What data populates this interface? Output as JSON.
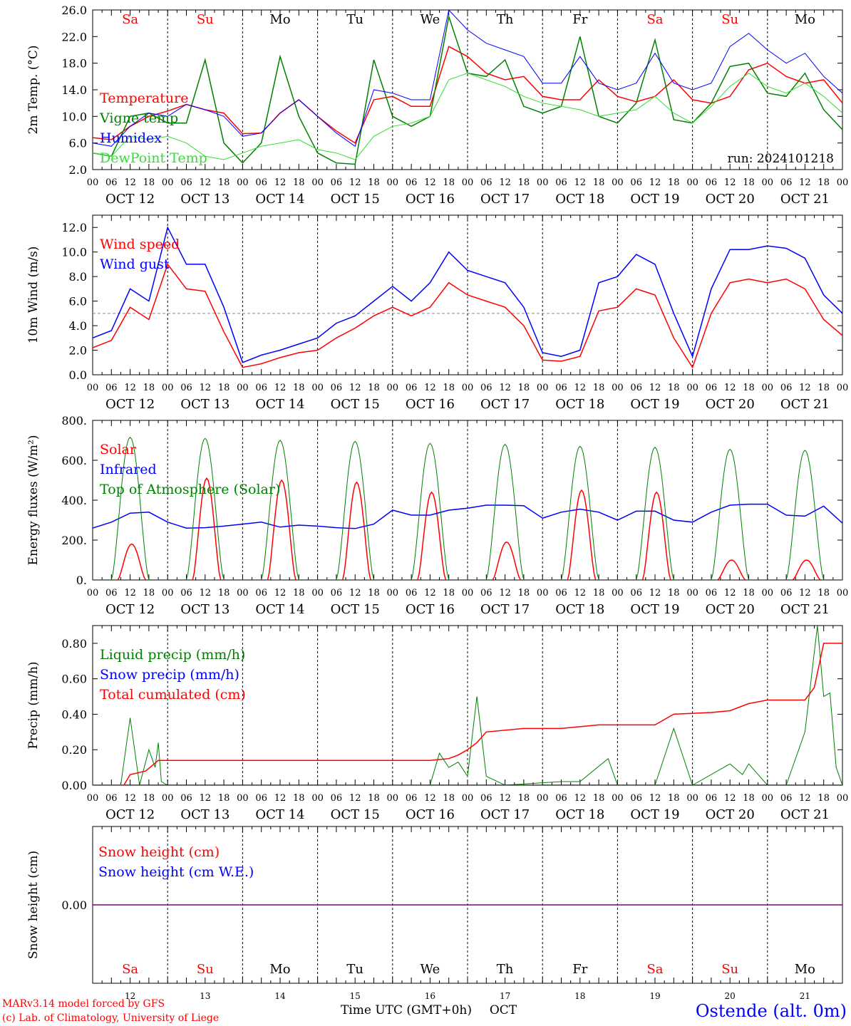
{
  "run_label": "run: 2024101218",
  "footer": {
    "model_line": "MARv3.14 model forced by GFS",
    "credit_line": "(c) Lab. of Climatology, University of Liege",
    "xlabel": "Time UTC (GMT+0h)",
    "month": "OCT",
    "station": "Ostende (alt. 0m)"
  },
  "colors": {
    "red": "#ff0000",
    "green": "#008000",
    "blue": "#0000ff",
    "light_green": "#33dd33",
    "purple": "#800080",
    "weekend": "#ff0000",
    "weekday": "#000000"
  },
  "days": [
    {
      "abbr": "Sa",
      "date": "OCT 12",
      "num": "12",
      "weekend": true
    },
    {
      "abbr": "Su",
      "date": "OCT 13",
      "num": "13",
      "weekend": true
    },
    {
      "abbr": "Mo",
      "date": "OCT 14",
      "num": "14",
      "weekend": false
    },
    {
      "abbr": "Tu",
      "date": "OCT 15",
      "num": "15",
      "weekend": false
    },
    {
      "abbr": "We",
      "date": "OCT 16",
      "num": "16",
      "weekend": false
    },
    {
      "abbr": "Th",
      "date": "OCT 17",
      "num": "17",
      "weekend": false
    },
    {
      "abbr": "Fr",
      "date": "OCT 18",
      "num": "18",
      "weekend": false
    },
    {
      "abbr": "Sa",
      "date": "OCT 19",
      "num": "19",
      "weekend": true
    },
    {
      "abbr": "Su",
      "date": "OCT 20",
      "num": "20",
      "weekend": true
    },
    {
      "abbr": "Mo",
      "date": "OCT 21",
      "num": "21",
      "weekend": false
    }
  ],
  "hour_ticks": [
    "00",
    "06",
    "12",
    "18"
  ],
  "final_hour_tick": "00",
  "chart_data": [
    {
      "type": "line",
      "ylabel": "2m Temp. (°C)",
      "ylim": [
        2,
        26
      ],
      "yticks": [
        "2.0",
        "6.0",
        "10.0",
        "14.0",
        "18.0",
        "22.0",
        "26.0"
      ],
      "ytick_values": [
        2,
        6,
        10,
        14,
        18,
        22,
        26
      ],
      "x_hours": [
        0,
        6,
        12,
        18,
        24,
        30,
        36,
        42,
        48,
        54,
        60,
        66,
        72,
        78,
        84,
        90,
        96,
        102,
        108,
        114,
        120,
        126,
        132,
        138,
        144,
        150,
        156,
        162,
        168,
        174,
        180,
        186,
        192,
        198,
        204,
        210,
        216,
        222,
        228,
        234,
        240
      ],
      "series": [
        {
          "name": "Temperature",
          "color": "#ff0000",
          "values": [
            6.8,
            6.5,
            8.5,
            10.0,
            10.8,
            11.8,
            11.0,
            10.5,
            7.4,
            7.5,
            10.5,
            12.5,
            10.0,
            7.8,
            6.0,
            12.5,
            13.0,
            11.5,
            11.5,
            20.5,
            19.0,
            16.5,
            15.5,
            16.0,
            13.0,
            12.5,
            12.5,
            15.5,
            13.0,
            12.2,
            13.0,
            15.5,
            12.5,
            12.0,
            13.0,
            17.0,
            18.0,
            16.0,
            15.0,
            15.5,
            12.0
          ]
        },
        {
          "name": "Vigne temp",
          "color": "#008000",
          "values": [
            4.5,
            4.0,
            10.0,
            10.5,
            9.0,
            9.0,
            18.5,
            6.0,
            3.0,
            6.0,
            19.0,
            10.0,
            4.5,
            3.0,
            2.8,
            18.5,
            10.0,
            8.5,
            10.0,
            25.0,
            16.5,
            16.0,
            18.5,
            11.5,
            10.5,
            11.5,
            22.0,
            10.0,
            9.0,
            12.0,
            21.5,
            9.5,
            9.0,
            12.0,
            17.5,
            18.0,
            13.5,
            13.0,
            16.5,
            11.0,
            8.0
          ]
        },
        {
          "name": "Humidex",
          "color": "#0000ff",
          "values": [
            6.0,
            5.5,
            8.5,
            10.5,
            10.0,
            11.8,
            11.0,
            10.0,
            7.0,
            7.5,
            10.5,
            12.5,
            10.0,
            7.5,
            5.5,
            14.0,
            13.5,
            12.5,
            12.5,
            26.0,
            23.0,
            21.0,
            20.0,
            19.0,
            15.0,
            15.0,
            19.0,
            15.0,
            14.0,
            15.0,
            19.5,
            15.0,
            14.0,
            15.0,
            20.5,
            22.5,
            20.0,
            18.0,
            19.5,
            16.0,
            13.5
          ]
        },
        {
          "name": "DewPoint Temp",
          "color": "#33dd33",
          "values": [
            4.5,
            4.0,
            7.0,
            6.5,
            7.0,
            6.0,
            4.0,
            3.5,
            4.5,
            5.5,
            6.0,
            6.5,
            5.0,
            4.5,
            3.5,
            7.0,
            8.5,
            9.0,
            10.0,
            15.5,
            16.5,
            15.5,
            14.5,
            13.0,
            12.0,
            11.5,
            11.0,
            10.0,
            10.5,
            11.0,
            13.0,
            10.5,
            9.0,
            11.5,
            14.5,
            16.5,
            14.5,
            13.5,
            15.0,
            13.0,
            10.5
          ]
        }
      ]
    },
    {
      "type": "line",
      "ylabel": "10m Wind (m/s)",
      "ylim": [
        0,
        13
      ],
      "yticks": [
        "0.0",
        "2.0",
        "4.0",
        "6.0",
        "8.0",
        "10.0",
        "12.0"
      ],
      "ytick_values": [
        0,
        2,
        4,
        6,
        8,
        10,
        12
      ],
      "reference_line": 5,
      "x_hours": [
        0,
        6,
        12,
        18,
        24,
        30,
        36,
        42,
        48,
        54,
        60,
        66,
        72,
        78,
        84,
        90,
        96,
        102,
        108,
        114,
        120,
        126,
        132,
        138,
        144,
        150,
        156,
        162,
        168,
        174,
        180,
        186,
        192,
        198,
        204,
        210,
        216,
        222,
        228,
        234,
        240
      ],
      "series": [
        {
          "name": "Wind speed",
          "color": "#ff0000",
          "values": [
            2.2,
            2.8,
            5.5,
            4.5,
            9.0,
            7.0,
            6.8,
            3.5,
            0.6,
            0.9,
            1.4,
            1.8,
            2.0,
            3.0,
            3.8,
            4.8,
            5.5,
            4.8,
            5.5,
            7.5,
            6.5,
            6.0,
            5.5,
            4.0,
            1.2,
            1.1,
            1.5,
            5.2,
            5.5,
            7.0,
            6.5,
            3.0,
            0.6,
            5.0,
            7.5,
            7.8,
            7.5,
            7.8,
            7.0,
            4.5,
            3.2
          ]
        },
        {
          "name": "Wind gust",
          "color": "#0000ff",
          "values": [
            3.0,
            3.6,
            7.0,
            6.0,
            12.0,
            9.0,
            9.0,
            5.5,
            1.0,
            1.6,
            2.0,
            2.5,
            3.0,
            4.2,
            4.8,
            6.0,
            7.2,
            6.0,
            7.5,
            10.0,
            8.5,
            8.0,
            7.5,
            5.5,
            1.8,
            1.5,
            2.0,
            7.5,
            8.0,
            9.8,
            9.0,
            5.0,
            1.5,
            7.0,
            10.2,
            10.2,
            10.5,
            10.3,
            9.5,
            6.5,
            5.0
          ]
        }
      ]
    },
    {
      "type": "line",
      "ylabel": "Energy fluxes (W/m²)",
      "ylim": [
        0,
        800
      ],
      "yticks": [
        "0.",
        "200.",
        "400.",
        "600.",
        "800."
      ],
      "ytick_values": [
        0,
        200,
        400,
        600,
        800
      ],
      "series": [
        {
          "name": "Solar",
          "color": "#ff0000",
          "daily_peaks": [
            180,
            510,
            500,
            490,
            440,
            190,
            450,
            440,
            100,
            100
          ]
        },
        {
          "name": "Infrared",
          "color": "#0000ff",
          "x_hours": [
            0,
            6,
            12,
            18,
            24,
            30,
            36,
            42,
            48,
            54,
            60,
            66,
            72,
            78,
            84,
            90,
            96,
            102,
            108,
            114,
            120,
            126,
            132,
            138,
            144,
            150,
            156,
            162,
            168,
            174,
            180,
            186,
            192,
            198,
            204,
            210,
            216,
            222,
            228,
            234,
            240
          ],
          "values": [
            260,
            290,
            335,
            340,
            290,
            260,
            262,
            270,
            280,
            290,
            265,
            275,
            270,
            262,
            258,
            280,
            350,
            325,
            325,
            350,
            360,
            375,
            375,
            372,
            310,
            340,
            355,
            340,
            300,
            345,
            345,
            300,
            290,
            340,
            375,
            380,
            380,
            325,
            320,
            370,
            285
          ]
        },
        {
          "name": "Top of Atmosphere (Solar)",
          "color": "#008000",
          "daily_peaks": [
            715,
            710,
            700,
            695,
            685,
            680,
            670,
            665,
            655,
            650
          ]
        }
      ]
    },
    {
      "type": "line",
      "ylabel": "Precip (mm/h)",
      "ylim": [
        0,
        0.9
      ],
      "yticks": [
        "0.00",
        "0.20",
        "0.40",
        "0.60",
        "0.80"
      ],
      "ytick_values": [
        0,
        0.2,
        0.4,
        0.6,
        0.8
      ],
      "series": [
        {
          "name": "Liquid precip (mm/h)",
          "color": "#008000",
          "x_hours": [
            0,
            9,
            12,
            15,
            18,
            20,
            21,
            22,
            24,
            90,
            102,
            108,
            111,
            114,
            117,
            120,
            123,
            126,
            132,
            150,
            156,
            165,
            168,
            180,
            186,
            192,
            204,
            208,
            210,
            216,
            222,
            228,
            232,
            234,
            236,
            238,
            240
          ],
          "values": [
            0,
            0,
            0.38,
            0,
            0.2,
            0.1,
            0.24,
            0.02,
            0,
            0,
            0,
            0,
            0.18,
            0.1,
            0.13,
            0.05,
            0.5,
            0.05,
            0,
            0.02,
            0.02,
            0.15,
            0,
            0,
            0.32,
            0,
            0.12,
            0.06,
            0.12,
            0,
            0,
            0.3,
            0.9,
            0.5,
            0.52,
            0.1,
            0
          ]
        },
        {
          "name": "Snow precip (mm/h)",
          "color": "#0000ff",
          "x_hours": [
            0,
            240
          ],
          "values": [
            0,
            0
          ]
        },
        {
          "name": "Total cumulated (cm)",
          "color": "#ff0000",
          "x_hours": [
            0,
            10,
            12,
            17,
            21,
            24,
            54,
            108,
            114,
            117,
            120,
            123,
            126,
            138,
            150,
            156,
            162,
            174,
            180,
            186,
            198,
            204,
            210,
            216,
            228,
            231,
            234,
            240
          ],
          "values": [
            0,
            0,
            0.06,
            0.08,
            0.14,
            0.14,
            0.14,
            0.14,
            0.15,
            0.17,
            0.2,
            0.24,
            0.3,
            0.32,
            0.32,
            0.33,
            0.34,
            0.34,
            0.34,
            0.4,
            0.41,
            0.42,
            0.46,
            0.48,
            0.48,
            0.55,
            0.8,
            0.8
          ]
        }
      ]
    },
    {
      "type": "line",
      "ylabel": "Snow height (cm)",
      "yticks": [
        "0.00"
      ],
      "series": [
        {
          "name": "Snow height (cm)",
          "color": "#ff0000",
          "values": [
            0,
            0
          ]
        },
        {
          "name": "Snow height (cm W.E.)",
          "color": "#0000ff",
          "values": [
            0,
            0
          ]
        }
      ]
    }
  ]
}
